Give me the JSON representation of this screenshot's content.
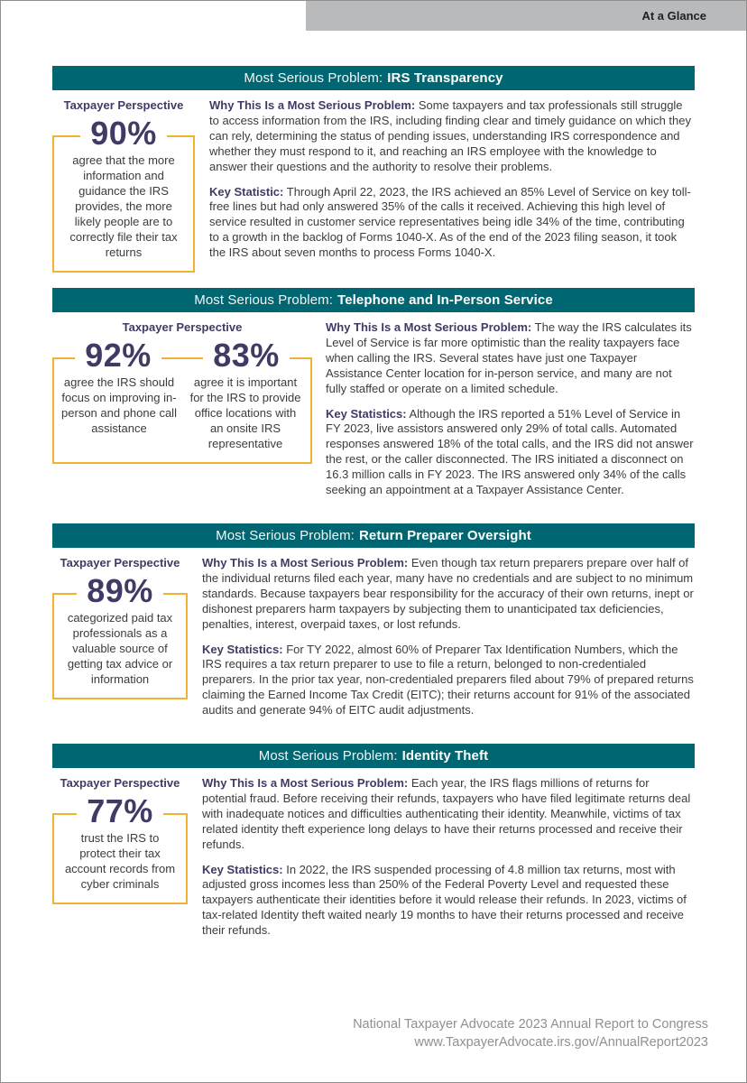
{
  "page": {
    "tab_label": "At a Glance",
    "footer_line1": "National Taxpayer Advocate 2023 Annual Report to Congress",
    "footer_line2": "www.TaxpayerAdvocate.irs.gov/AnnualReport2023"
  },
  "colors": {
    "header_teal": "#006672",
    "accent_purple": "#403a65",
    "stat_box_gold": "#f2b233",
    "top_bar_gray": "#b9babc",
    "body_text": "#3c3c3e",
    "footer_gray": "#8e9092"
  },
  "sections": [
    {
      "header_prefix": "Most Serious Problem:",
      "header_title": "IRS Transparency",
      "perspective_label": "Taxpayer Perspective",
      "stats": [
        {
          "value": "90%",
          "text": "agree that the more information and guidance the IRS provides, the more likely people are to correctly file their tax returns"
        }
      ],
      "why_label": "Why This Is a Most Serious Problem:",
      "why_text": "Some taxpayers and tax professionals still struggle to access information from the IRS, including finding clear and timely guidance on which they can rely, determining the status of pending issues, understanding IRS correspondence and whether they must respond to it, and reaching an IRS employee with the knowledge to answer their questions and the authority to resolve their problems.",
      "key_label": "Key Statistic:",
      "key_text": "Through April 22, 2023, the IRS achieved an 85% Level of Service on key toll-free lines but had only answered 35% of the calls it received. Achieving this high level of service resulted in customer service representatives being idle 34% of the time, contributing to a growth in the backlog of Forms 1040-X. As of the end of the 2023 filing season, it took the IRS about seven months to process Forms 1040-X."
    },
    {
      "header_prefix": "Most Serious Problem:",
      "header_title": "Telephone and In-Person Service",
      "perspective_label": "Taxpayer Perspective",
      "stats": [
        {
          "value": "92%",
          "text": "agree the IRS should focus on improving in-person and phone call assistance"
        },
        {
          "value": "83%",
          "text": "agree it is important for the IRS to provide office locations with an onsite IRS representative"
        }
      ],
      "why_label": "Why This Is a Most Serious Problem:",
      "why_text": "The way the IRS calculates its Level of Service is far more optimistic than the reality taxpayers face when calling the IRS. Several states have just one Taxpayer Assistance Center location for in-person service, and many are not fully staffed or operate on a limited schedule.",
      "key_label": "Key Statistics:",
      "key_text": "Although the IRS reported a 51% Level of Service in FY 2023, live assistors answered only 29% of total calls. Automated responses answered 18% of the total calls, and the IRS did not answer the rest, or the caller disconnected. The IRS initiated a disconnect on 16.3 million calls in FY 2023. The IRS answered only 34% of the calls seeking an appointment at a Taxpayer Assistance Center."
    },
    {
      "header_prefix": "Most Serious Problem:",
      "header_title": "Return Preparer Oversight",
      "perspective_label": "Taxpayer Perspective",
      "stats": [
        {
          "value": "89%",
          "text": "categorized paid tax professionals as a valuable source of getting tax advice or information"
        }
      ],
      "why_label": "Why This Is a Most Serious Problem:",
      "why_text": "Even though tax return preparers prepare over half of the individual returns filed each year, many have no credentials and are subject to no minimum standards. Because taxpayers bear responsibility for the accuracy of their own returns, inept or dishonest preparers harm taxpayers by subjecting them to unanticipated tax deficiencies, penalties, interest, overpaid taxes, or lost refunds.",
      "key_label": "Key Statistics:",
      "key_text": "For TY 2022, almost 60% of Preparer Tax Identification Numbers, which the IRS requires a tax return preparer to use to file a return, belonged to non-credentialed preparers. In the prior tax year, non-credentialed preparers filed about 79% of prepared returns claiming the Earned Income Tax Credit (EITC); their returns account for 91% of the associated audits and generate 94% of EITC audit adjustments."
    },
    {
      "header_prefix": "Most Serious Problem:",
      "header_title": "Identity Theft",
      "perspective_label": "Taxpayer Perspective",
      "stats": [
        {
          "value": "77%",
          "text": "trust the IRS to protect their tax account records from cyber criminals"
        }
      ],
      "why_label": "Why This Is a Most Serious Problem:",
      "why_text": "Each year, the IRS flags millions of returns for potential fraud. Before receiving their refunds, taxpayers who have filed legitimate returns deal with inadequate notices and difficulties authenticating their identity. Meanwhile, victims of tax related identity theft experience long delays to have their returns processed and receive their refunds.",
      "key_label": "Key Statistics:",
      "key_text": "In 2022, the IRS suspended processing of 4.8 million tax returns, most with adjusted gross incomes less than 250% of the Federal Poverty Level and requested these taxpayers authenticate their identities before it would release their refunds. In 2023, victims of tax-related Identity theft waited nearly 19 months to have their returns processed and receive their refunds."
    }
  ]
}
